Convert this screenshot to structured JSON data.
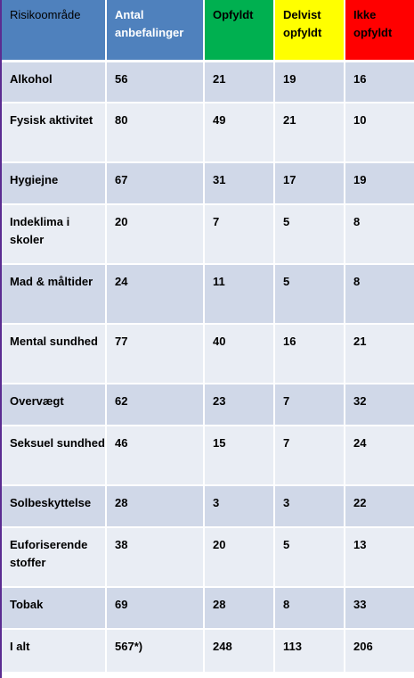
{
  "table": {
    "headers": {
      "risk": "Risikoområde",
      "antal": "Antal anbefalinger",
      "opfyldt": "Opfyldt",
      "delvist": "Delvist opfyldt",
      "ikke": "Ikke opfyldt"
    },
    "colors": {
      "header_blue": "#4f81bd",
      "opfyldt_green": "#00b050",
      "delvist_yellow": "#ffff00",
      "ikke_red": "#ff0000",
      "row_dark": "#d0d8e8",
      "row_light": "#e9edf4"
    },
    "rows": [
      {
        "omrade": "Alkohol",
        "antal": "56",
        "opfyldt": "21",
        "delvist": "19",
        "ikke": "16"
      },
      {
        "omrade": "Fysisk aktivitet",
        "antal": "80",
        "opfyldt": "49",
        "delvist": "21",
        "ikke": "10"
      },
      {
        "omrade": "Hygiejne",
        "antal": "67",
        "opfyldt": "31",
        "delvist": "17",
        "ikke": "19"
      },
      {
        "omrade": "Indeklima i skoler",
        "antal": "20",
        "opfyldt": "7",
        "delvist": "5",
        "ikke": "8"
      },
      {
        "omrade": "Mad & måltider",
        "antal": "24",
        "opfyldt": "11",
        "delvist": "5",
        "ikke": "8"
      },
      {
        "omrade": "Mental sundhed",
        "antal": "77",
        "opfyldt": "40",
        "delvist": "16",
        "ikke": "21"
      },
      {
        "omrade": "Overvægt",
        "antal": "62",
        "opfyldt": "23",
        "delvist": "7",
        "ikke": "32"
      },
      {
        "omrade": "Seksuel sundhed",
        "antal": "46",
        "opfyldt": "15",
        "delvist": "7",
        "ikke": "24"
      },
      {
        "omrade": "Solbeskyttelse",
        "antal": "28",
        "opfyldt": "3",
        "delvist": "3",
        "ikke": "22"
      },
      {
        "omrade": "Euforiserende stoffer",
        "antal": "38",
        "opfyldt": "20",
        "delvist": "5",
        "ikke": "13"
      },
      {
        "omrade": "Tobak",
        "antal": "69",
        "opfyldt": "28",
        "delvist": "8",
        "ikke": "33"
      },
      {
        "omrade": "I alt",
        "antal": "567*)",
        "opfyldt": "248",
        "delvist": "113",
        "ikke": "206"
      }
    ]
  }
}
